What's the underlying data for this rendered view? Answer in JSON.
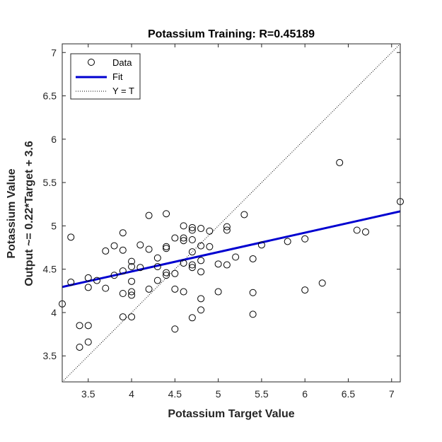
{
  "chart_data": {
    "type": "scatter",
    "title": "Potassium Training: R=0.45189",
    "xlabel": "Potassium Target Value",
    "ylabel_line1": "Potassium Value",
    "ylabel_line2": "Output ~= 0.22*Target + 3.6",
    "xlim": [
      3.2,
      7.1
    ],
    "ylim": [
      3.2,
      7.1
    ],
    "xticks": [
      3.5,
      4,
      4.5,
      5,
      5.5,
      6,
      6.5,
      7
    ],
    "yticks": [
      3.5,
      4,
      4.5,
      5,
      5.5,
      6,
      6.5,
      7
    ],
    "grid": false,
    "legend": {
      "placement": "top-left",
      "entries": [
        "Data",
        "Fit",
        "Y = T"
      ]
    },
    "fit": {
      "slope": 0.2238,
      "intercept": 3.5784,
      "color": "#0000d0"
    },
    "identity_line_color": "#000000",
    "series": [
      {
        "name": "Data",
        "points": [
          [
            3.2,
            4.1
          ],
          [
            3.3,
            4.87
          ],
          [
            3.3,
            4.35
          ],
          [
            3.4,
            3.85
          ],
          [
            3.4,
            3.6
          ],
          [
            3.5,
            3.85
          ],
          [
            3.5,
            3.66
          ],
          [
            3.5,
            4.4
          ],
          [
            3.5,
            4.29
          ],
          [
            3.6,
            4.37
          ],
          [
            3.7,
            4.28
          ],
          [
            3.7,
            4.71
          ],
          [
            3.8,
            4.43
          ],
          [
            3.8,
            4.77
          ],
          [
            3.9,
            4.92
          ],
          [
            3.9,
            4.72
          ],
          [
            3.9,
            4.48
          ],
          [
            3.9,
            4.22
          ],
          [
            3.9,
            3.95
          ],
          [
            4.0,
            4.59
          ],
          [
            4.0,
            4.53
          ],
          [
            4.0,
            4.36
          ],
          [
            4.0,
            4.24
          ],
          [
            4.0,
            4.2
          ],
          [
            4.0,
            3.95
          ],
          [
            4.1,
            4.78
          ],
          [
            4.1,
            4.52
          ],
          [
            4.2,
            5.12
          ],
          [
            4.2,
            4.73
          ],
          [
            4.2,
            4.27
          ],
          [
            4.3,
            4.63
          ],
          [
            4.3,
            4.53
          ],
          [
            4.3,
            4.37
          ],
          [
            4.4,
            5.14
          ],
          [
            4.4,
            4.76
          ],
          [
            4.4,
            4.74
          ],
          [
            4.4,
            4.46
          ],
          [
            4.4,
            4.43
          ],
          [
            4.5,
            4.86
          ],
          [
            4.5,
            4.45
          ],
          [
            4.5,
            4.27
          ],
          [
            4.5,
            3.81
          ],
          [
            4.6,
            5.0
          ],
          [
            4.6,
            4.86
          ],
          [
            4.6,
            4.83
          ],
          [
            4.6,
            4.57
          ],
          [
            4.6,
            4.24
          ],
          [
            4.7,
            4.98
          ],
          [
            4.7,
            4.95
          ],
          [
            4.7,
            4.84
          ],
          [
            4.7,
            4.7
          ],
          [
            4.7,
            4.55
          ],
          [
            4.7,
            4.52
          ],
          [
            4.7,
            3.94
          ],
          [
            4.8,
            4.97
          ],
          [
            4.8,
            4.77
          ],
          [
            4.8,
            4.6
          ],
          [
            4.8,
            4.47
          ],
          [
            4.8,
            4.16
          ],
          [
            4.8,
            4.03
          ],
          [
            4.9,
            4.94
          ],
          [
            4.9,
            4.76
          ],
          [
            5.0,
            4.56
          ],
          [
            5.0,
            4.24
          ],
          [
            5.1,
            4.99
          ],
          [
            5.1,
            4.95
          ],
          [
            5.1,
            4.55
          ],
          [
            5.2,
            4.64
          ],
          [
            5.3,
            5.13
          ],
          [
            5.4,
            4.62
          ],
          [
            5.4,
            4.23
          ],
          [
            5.4,
            3.98
          ],
          [
            5.5,
            4.78
          ],
          [
            5.8,
            4.82
          ],
          [
            6.0,
            4.85
          ],
          [
            6.0,
            4.26
          ],
          [
            6.2,
            4.34
          ],
          [
            6.4,
            5.73
          ],
          [
            6.6,
            4.95
          ],
          [
            6.7,
            4.93
          ],
          [
            7.1,
            5.28
          ]
        ]
      }
    ]
  }
}
